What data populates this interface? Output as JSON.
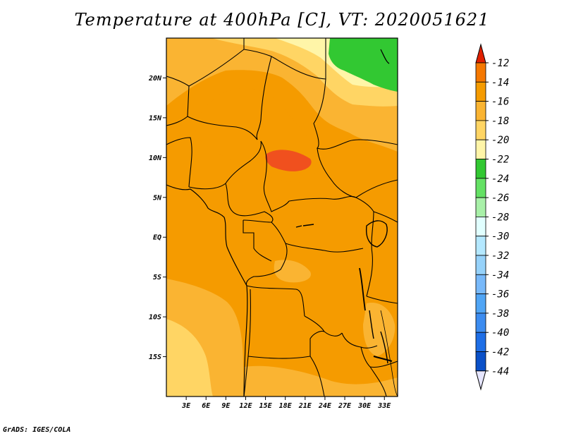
{
  "title": "Temperature at 400hPa [C], VT: 2020051621",
  "credit": "GrADS: IGES/COLA",
  "map": {
    "lat_labels": [
      "20N",
      "15N",
      "10N",
      "5N",
      "EQ",
      "5S",
      "10S",
      "15S"
    ],
    "lat_values": [
      20,
      15,
      10,
      5,
      0,
      -5,
      -10,
      -15
    ],
    "lon_labels": [
      "3E",
      "6E",
      "9E",
      "12E",
      "15E",
      "18E",
      "21E",
      "24E",
      "27E",
      "30E",
      "33E"
    ],
    "lon_values": [
      3,
      6,
      9,
      12,
      15,
      18,
      21,
      24,
      27,
      30,
      33
    ],
    "lat_range": [
      -20,
      25
    ],
    "lon_range": [
      0,
      35
    ]
  },
  "colorbar": {
    "labels": [
      "-12",
      "-14",
      "-16",
      "-18",
      "-20",
      "-22",
      "-24",
      "-26",
      "-28",
      "-30",
      "-32",
      "-34",
      "-36",
      "-38",
      "-40",
      "-42",
      "-44"
    ],
    "colors": [
      "#f0501e",
      "#f57800",
      "#f59b00",
      "#fab432",
      "#ffd564",
      "#fff5a8",
      "#32c832",
      "#64e164",
      "#a8f0a8",
      "#e1ffff",
      "#b4e8ff",
      "#96d2fa",
      "#78b9fa",
      "#50a5f5",
      "#3c8cf0",
      "#1e6ee6",
      "#0a50c8",
      "#001e78"
    ],
    "over_color": "#e02000",
    "under_color": "#e6e6ff"
  }
}
